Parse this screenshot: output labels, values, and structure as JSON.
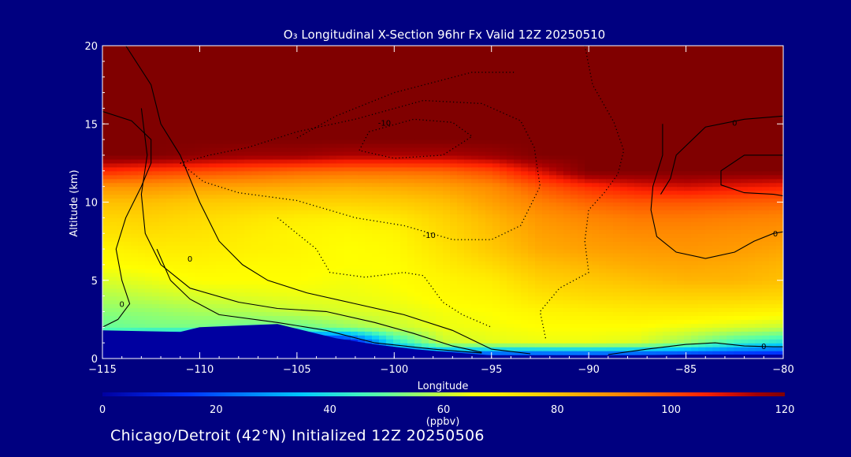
{
  "chart_data": {
    "type": "heatmap",
    "title": "O₃ Longitudinal X-Section 96hr  Fx Valid 12Z 20250510",
    "xlabel": "Longitude",
    "ylabel": "Altitude (km)",
    "xlim": [
      -115,
      -80
    ],
    "ylim": [
      0,
      20
    ],
    "x_ticks": [
      -115,
      -110,
      -105,
      -100,
      -95,
      -90,
      -85,
      -80
    ],
    "x_tick_labels": [
      "−115",
      "−110",
      "−105",
      "−100",
      "−95",
      "−90",
      "−85",
      "−80"
    ],
    "y_ticks": [
      0,
      5,
      10,
      15,
      20
    ],
    "y_tick_labels": [
      "0",
      "5",
      "10",
      "15",
      "20"
    ],
    "colorbar": {
      "label": "(ppbv)",
      "min": 0,
      "max": 120,
      "ticks": [
        0,
        20,
        40,
        60,
        80,
        100,
        120
      ],
      "tick_labels": [
        "0",
        "20",
        "40",
        "60",
        "80",
        "100",
        "120"
      ]
    },
    "ozone_field": {
      "lon": [
        -115,
        -112.5,
        -110,
        -107.5,
        -105,
        -102.5,
        -100,
        -97.5,
        -95,
        -92.5,
        -90,
        -87.5,
        -85,
        -82.5,
        -80
      ],
      "alt": [
        0,
        1,
        2,
        3,
        4,
        5,
        6,
        7,
        8,
        9,
        10,
        11,
        12,
        13,
        14,
        15,
        16,
        17,
        18,
        19,
        20
      ],
      "values": [
        [
          0,
          0,
          0,
          0,
          0,
          0,
          0,
          0,
          0,
          0,
          0,
          0,
          0,
          0,
          0
        ],
        [
          30,
          0,
          0,
          0,
          0,
          0,
          40,
          60,
          63,
          64,
          64,
          62,
          55,
          45,
          40
        ],
        [
          50,
          52,
          52,
          50,
          50,
          55,
          60,
          64,
          65,
          66,
          66,
          66,
          64,
          62,
          60
        ],
        [
          54,
          55,
          57,
          58,
          60,
          62,
          63,
          65,
          66,
          68,
          69,
          70,
          70,
          69,
          68
        ],
        [
          58,
          60,
          62,
          63,
          64,
          64,
          65,
          67,
          68,
          72,
          74,
          75,
          76,
          76,
          75
        ],
        [
          62,
          64,
          66,
          66,
          66,
          65,
          66,
          68,
          70,
          76,
          78,
          80,
          82,
          82,
          80
        ],
        [
          66,
          67,
          68,
          67,
          67,
          66,
          66,
          70,
          74,
          80,
          82,
          84,
          85,
          84,
          82
        ],
        [
          68,
          70,
          70,
          69,
          68,
          66,
          67,
          72,
          78,
          84,
          86,
          87,
          88,
          87,
          85
        ],
        [
          72,
          73,
          72,
          70,
          68,
          67,
          68,
          74,
          80,
          86,
          88,
          90,
          90,
          89,
          88
        ],
        [
          75,
          76,
          74,
          72,
          70,
          69,
          71,
          76,
          82,
          88,
          91,
          93,
          93,
          92,
          91
        ],
        [
          80,
          80,
          78,
          77,
          76,
          76,
          77,
          80,
          86,
          92,
          96,
          98,
          98,
          97,
          96
        ],
        [
          88,
          88,
          86,
          85,
          84,
          83,
          84,
          86,
          90,
          98,
          104,
          108,
          110,
          108,
          106
        ],
        [
          105,
          102,
          100,
          98,
          96,
          95,
          95,
          96,
          100,
          110,
          120,
          120,
          120,
          120,
          120
        ],
        [
          120,
          120,
          118,
          116,
          116,
          114,
          114,
          114,
          116,
          120,
          120,
          120,
          120,
          120,
          120
        ],
        [
          120,
          120,
          120,
          120,
          120,
          120,
          120,
          120,
          120,
          120,
          120,
          120,
          120,
          120,
          120
        ],
        [
          120,
          120,
          120,
          120,
          120,
          120,
          120,
          120,
          120,
          120,
          120,
          120,
          120,
          120,
          120
        ],
        [
          120,
          120,
          120,
          120,
          120,
          120,
          120,
          120,
          120,
          120,
          120,
          120,
          120,
          120,
          120
        ],
        [
          120,
          120,
          120,
          120,
          120,
          120,
          120,
          120,
          120,
          120,
          120,
          120,
          120,
          120,
          120
        ],
        [
          120,
          120,
          120,
          120,
          120,
          120,
          120,
          120,
          120,
          120,
          120,
          120,
          120,
          120,
          120
        ],
        [
          120,
          120,
          120,
          120,
          120,
          120,
          120,
          120,
          120,
          120,
          120,
          120,
          120,
          120,
          120
        ],
        [
          120,
          120,
          120,
          120,
          120,
          120,
          120,
          120,
          120,
          120,
          120,
          120,
          120,
          120,
          120
        ]
      ]
    },
    "terrain": {
      "lon": [
        -115,
        -111,
        -110,
        -108,
        -106,
        -105,
        -103,
        -101,
        -99,
        -97,
        -95,
        -92,
        -88,
        -85,
        -82,
        -80
      ],
      "alt": [
        1.8,
        1.7,
        2.0,
        2.1,
        2.2,
        1.9,
        1.3,
        0.9,
        0.6,
        0.4,
        0.2,
        0.2,
        0.2,
        0.25,
        0.25,
        0.25
      ]
    },
    "contour_lines": [
      {
        "label": "0",
        "style": "solid",
        "points": [
          [
            -115,
            15.8
          ],
          [
            -113.5,
            15.2
          ],
          [
            -112.5,
            14
          ],
          [
            -112.5,
            12.5
          ],
          [
            -113,
            11
          ],
          [
            -113.8,
            9
          ],
          [
            -114.3,
            7
          ],
          [
            -114,
            5
          ],
          [
            -113.6,
            3.5
          ],
          [
            -114.2,
            2.5
          ],
          [
            -115,
            2
          ]
        ],
        "label_lon": -114,
        "label_alt": 3.5
      },
      {
        "label": "0",
        "style": "solid",
        "points": [
          [
            -113.8,
            20
          ],
          [
            -112.5,
            17.5
          ],
          [
            -112,
            15
          ],
          [
            -111,
            13
          ],
          [
            -110,
            10
          ],
          [
            -109,
            7.5
          ],
          [
            -107.8,
            6
          ],
          [
            -106.5,
            5
          ],
          [
            -104.5,
            4.2
          ],
          [
            -102,
            3.5
          ],
          [
            -99.5,
            2.8
          ],
          [
            -97,
            1.8
          ],
          [
            -95,
            0.6
          ],
          [
            -93,
            0.3
          ]
        ],
        "label_lon": -110.5,
        "label_alt": 6.4
      },
      {
        "label": "",
        "style": "solid",
        "points": [
          [
            -113,
            16
          ],
          [
            -112.7,
            13
          ],
          [
            -113,
            10.5
          ],
          [
            -112.8,
            8
          ],
          [
            -112,
            6
          ],
          [
            -110.5,
            4.5
          ],
          [
            -108,
            3.6
          ],
          [
            -106,
            3.2
          ],
          [
            -103.5,
            3.0
          ],
          [
            -101,
            2.3
          ],
          [
            -99,
            1.6
          ],
          [
            -97,
            0.8
          ],
          [
            -95.5,
            0.4
          ]
        ],
        "label_lon": null,
        "label_alt": null
      },
      {
        "label": "",
        "style": "solid",
        "points": [
          [
            -112.2,
            7
          ],
          [
            -111.5,
            5
          ],
          [
            -110.5,
            3.8
          ],
          [
            -109,
            2.8
          ],
          [
            -106,
            2.3
          ],
          [
            -103.5,
            1.8
          ],
          [
            -101,
            1.0
          ],
          [
            -98,
            0.6
          ],
          [
            -95.5,
            0.35
          ]
        ],
        "label_lon": null,
        "label_alt": null
      },
      {
        "label": "0",
        "style": "solid",
        "points": [
          [
            -86.2,
            15
          ],
          [
            -86.2,
            13
          ],
          [
            -86.7,
            11
          ],
          [
            -86.8,
            9.5
          ],
          [
            -86.5,
            7.8
          ],
          [
            -85.5,
            6.8
          ],
          [
            -84,
            6.4
          ],
          [
            -82.5,
            6.8
          ],
          [
            -81.5,
            7.5
          ],
          [
            -80.5,
            8
          ],
          [
            -80,
            8.1
          ]
        ],
        "label_lon": -80.4,
        "label_alt": 8
      },
      {
        "label": "0",
        "style": "solid",
        "points": [
          [
            -80,
            15.5
          ],
          [
            -82,
            15.3
          ],
          [
            -84,
            14.8
          ],
          [
            -85.5,
            13
          ],
          [
            -85.8,
            11.5
          ],
          [
            -86.3,
            10.5
          ]
        ],
        "label_lon": -82.5,
        "label_alt": 15.1
      },
      {
        "label": "",
        "style": "solid",
        "points": [
          [
            -80,
            13
          ],
          [
            -82,
            13
          ],
          [
            -83.2,
            12
          ],
          [
            -83.2,
            11.1
          ],
          [
            -82,
            10.6
          ],
          [
            -80.5,
            10.5
          ],
          [
            -80,
            10.4
          ]
        ],
        "label_lon": null,
        "label_alt": null
      },
      {
        "label": "0",
        "style": "solid",
        "points": [
          [
            -89,
            0.25
          ],
          [
            -87,
            0.6
          ],
          [
            -85,
            0.9
          ],
          [
            -83.5,
            1.0
          ],
          [
            -82,
            0.8
          ],
          [
            -80.5,
            0.75
          ],
          [
            -80,
            0.75
          ]
        ],
        "label_lon": -81,
        "label_alt": 0.8
      },
      {
        "label": "-10",
        "style": "dotted",
        "points": [
          [
            -111,
            12.5
          ],
          [
            -109.8,
            11.3
          ],
          [
            -108,
            10.6
          ],
          [
            -105,
            10.1
          ],
          [
            -102,
            9.0
          ],
          [
            -99.5,
            8.5
          ],
          [
            -97,
            7.6
          ],
          [
            -95,
            7.6
          ],
          [
            -93.5,
            8.5
          ],
          [
            -92.5,
            11
          ],
          [
            -92.8,
            13.5
          ],
          [
            -93.5,
            15.2
          ],
          [
            -95.5,
            16.3
          ],
          [
            -98.5,
            16.5
          ],
          [
            -102,
            15.3
          ],
          [
            -105,
            14.5
          ],
          [
            -107.5,
            13.5
          ],
          [
            -109.5,
            13
          ],
          [
            -111,
            12.5
          ]
        ],
        "label_lon": -98.2,
        "label_alt": 7.9
      },
      {
        "label": "-10",
        "style": "dotted",
        "points": [
          [
            -101.3,
            14.5
          ],
          [
            -99,
            15.3
          ],
          [
            -97,
            15.1
          ],
          [
            -96,
            14.2
          ],
          [
            -97.5,
            13
          ],
          [
            -100,
            12.8
          ],
          [
            -101.8,
            13.3
          ],
          [
            -101.3,
            14.5
          ]
        ],
        "label_lon": -100.5,
        "label_alt": 15.1
      },
      {
        "label": "",
        "style": "dotted",
        "points": [
          [
            -105,
            14.1
          ],
          [
            -103,
            15.5
          ],
          [
            -100,
            17
          ],
          [
            -96,
            18.3
          ],
          [
            -93.8,
            18.3
          ]
        ],
        "label_lon": null,
        "label_alt": null
      },
      {
        "label": "",
        "style": "dotted",
        "points": [
          [
            -90.2,
            20
          ],
          [
            -89.8,
            17.5
          ],
          [
            -88.7,
            15.1
          ],
          [
            -88.2,
            13.3
          ],
          [
            -88.5,
            11.8
          ],
          [
            -89.2,
            10.6
          ],
          [
            -90,
            9.5
          ],
          [
            -90.2,
            7.5
          ],
          [
            -90,
            5.5
          ],
          [
            -91.5,
            4.5
          ],
          [
            -92.5,
            3.0
          ],
          [
            -92.2,
            1.2
          ]
        ],
        "label_lon": null,
        "label_alt": null
      },
      {
        "label": "",
        "style": "dotted",
        "points": [
          [
            -106,
            9.0
          ],
          [
            -104,
            7.0
          ],
          [
            -103.3,
            5.5
          ],
          [
            -101.5,
            5.2
          ],
          [
            -99.5,
            5.5
          ],
          [
            -98.5,
            5.3
          ],
          [
            -97.5,
            3.6
          ],
          [
            -96.5,
            2.8
          ],
          [
            -95,
            2.0
          ]
        ],
        "label_lon": null,
        "label_alt": null
      }
    ],
    "grid": false,
    "legend": "horizontal colorbar below plot"
  },
  "footer": {
    "caption": "Chicago/Detroit (42°N) Initialized 12Z 20250506"
  },
  "colors": {
    "background": "#000080",
    "text": "#ffffff",
    "colormap": [
      "#0000a0",
      "#0030ff",
      "#00c8ff",
      "#50ffb0",
      "#b0ff50",
      "#ffff00",
      "#ffc000",
      "#ff8000",
      "#ff2000",
      "#800000"
    ]
  }
}
